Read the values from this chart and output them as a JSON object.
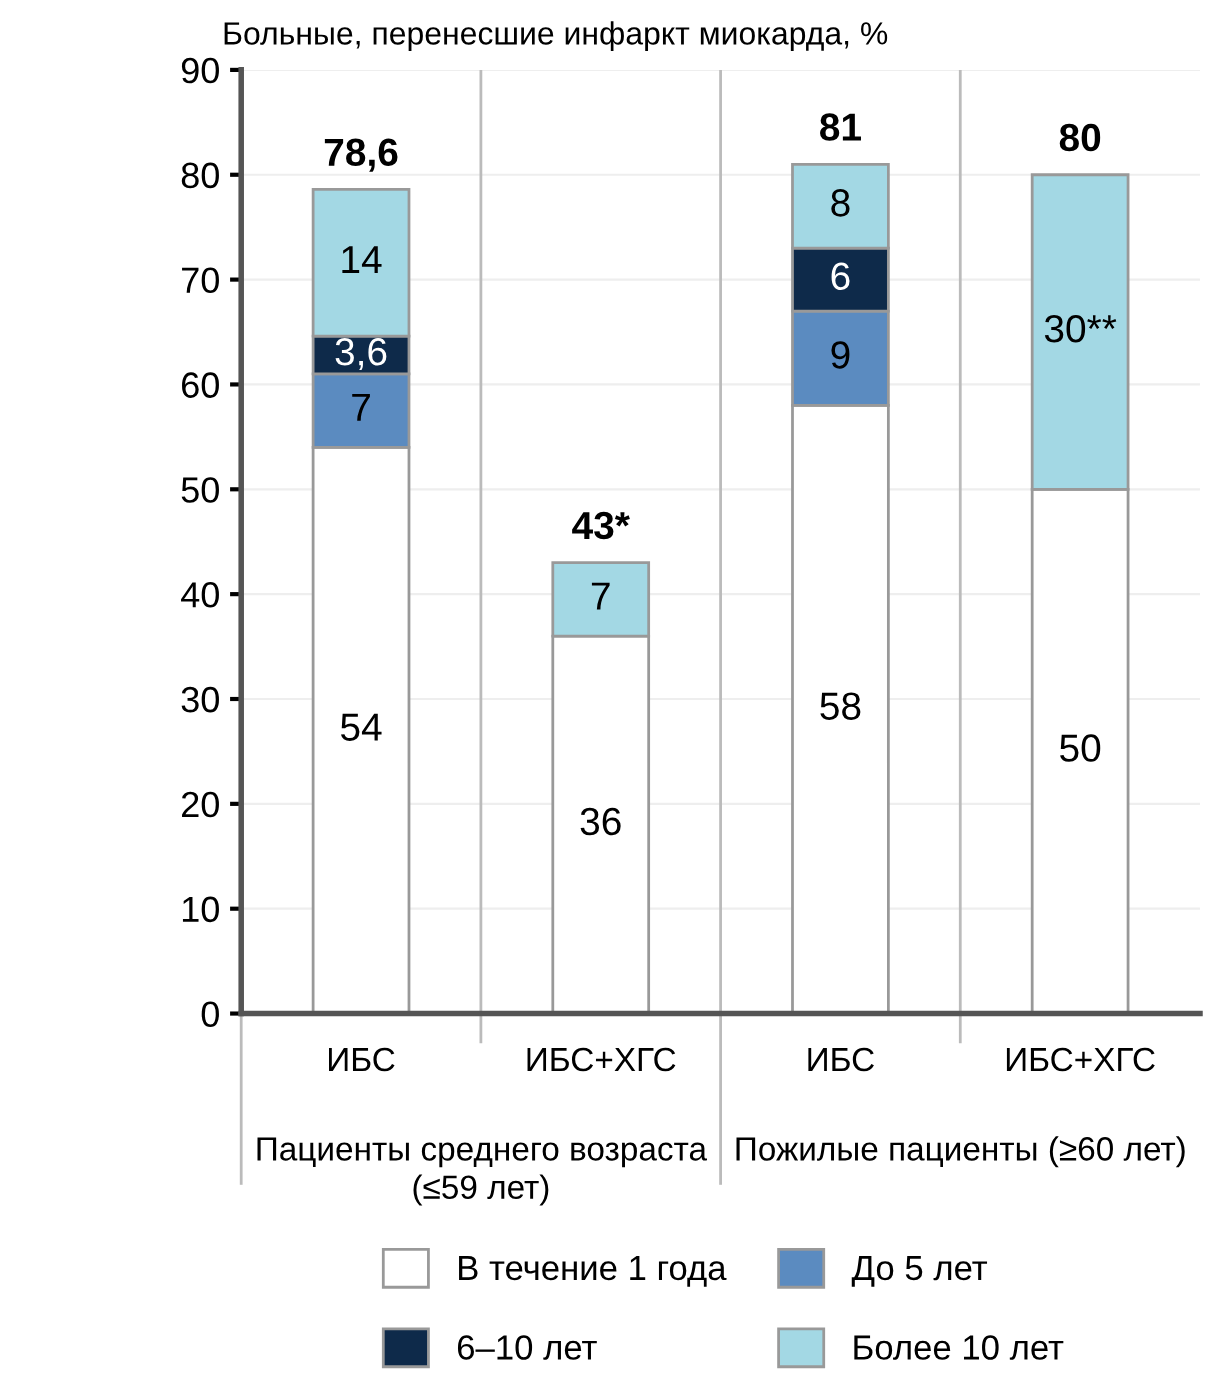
{
  "chart_data": {
    "type": "bar",
    "stacked": true,
    "ylabel": "Больные, перенесшие инфаркт миокарда, %",
    "categories": [
      "ИБС",
      "ИБС+ХГС",
      "ИБС",
      "ИБС+ХГС"
    ],
    "series": [
      {
        "name": "В течение 1 года",
        "color": "#ffffff",
        "values": [
          54,
          36,
          58,
          50
        ],
        "value_labels": [
          "54",
          "36",
          "58",
          "50"
        ]
      },
      {
        "name": "До 5 лет",
        "color": "#5b8bc0",
        "values": [
          7,
          null,
          9,
          null
        ],
        "value_labels": [
          "7",
          null,
          "9",
          null
        ]
      },
      {
        "name": "6–10 лет",
        "color": "#0e2a4a",
        "values": [
          3.6,
          null,
          6,
          null
        ],
        "value_labels": [
          "3,6",
          null,
          "6",
          null
        ]
      },
      {
        "name": "Более 10 лет",
        "color": "#a3d8e4",
        "values": [
          14,
          7,
          8,
          30
        ],
        "value_labels": [
          "14",
          "7",
          "8",
          "30**"
        ]
      }
    ],
    "totals": [
      "78,6",
      "43*",
      "81",
      "80"
    ],
    "annotations": [
      "Пациенты среднего возраста\n(≤59 лет)",
      "Пожилые пациенты (≥60 лет)"
    ],
    "ylim": [
      0,
      90
    ],
    "yticks": [
      0,
      10,
      20,
      30,
      40,
      50,
      60,
      70,
      80,
      90
    ],
    "grid": "y",
    "legend": "bottom"
  }
}
